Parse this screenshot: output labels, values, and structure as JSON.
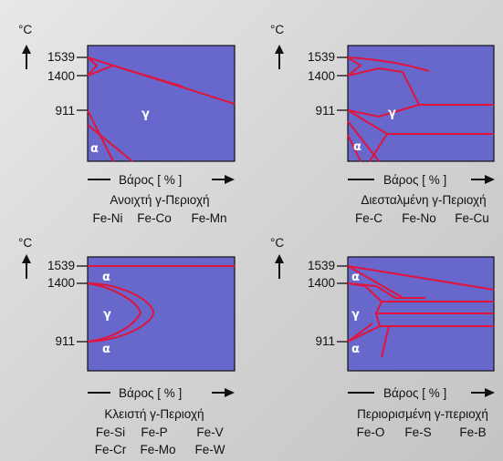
{
  "unit": "°C",
  "temps": [
    "1539",
    "1400",
    "911"
  ],
  "axis_label": "Βάρος [ % ]",
  "phases": {
    "alpha": "α",
    "gamma": "γ"
  },
  "panels": [
    {
      "title": "Ανοιχτή γ-Περιοχή",
      "alloys": [
        [
          "Fe-Ni",
          "Fe-Co",
          "Fe-Mn"
        ]
      ]
    },
    {
      "title": "Διεσταλμένη γ-Περιοχή",
      "alloys": [
        [
          "Fe-C",
          "Fe-No",
          "Fe-Cu"
        ]
      ]
    },
    {
      "title": "Κλειστή γ-Περιοχή",
      "alloys": [
        [
          "Fe-Si",
          "Fe-P",
          "Fe-V"
        ],
        [
          "Fe-Cr",
          "Fe-Mo",
          "Fe-W"
        ]
      ]
    },
    {
      "title": "Περιορισμένη γ-περιοχή",
      "alloys": [
        [
          "Fe-O",
          "Fe-S",
          "Fe-B"
        ]
      ]
    }
  ],
  "colors": {
    "field": "#6767cc",
    "boundary": "#e0143c",
    "label": "#ffffff"
  }
}
